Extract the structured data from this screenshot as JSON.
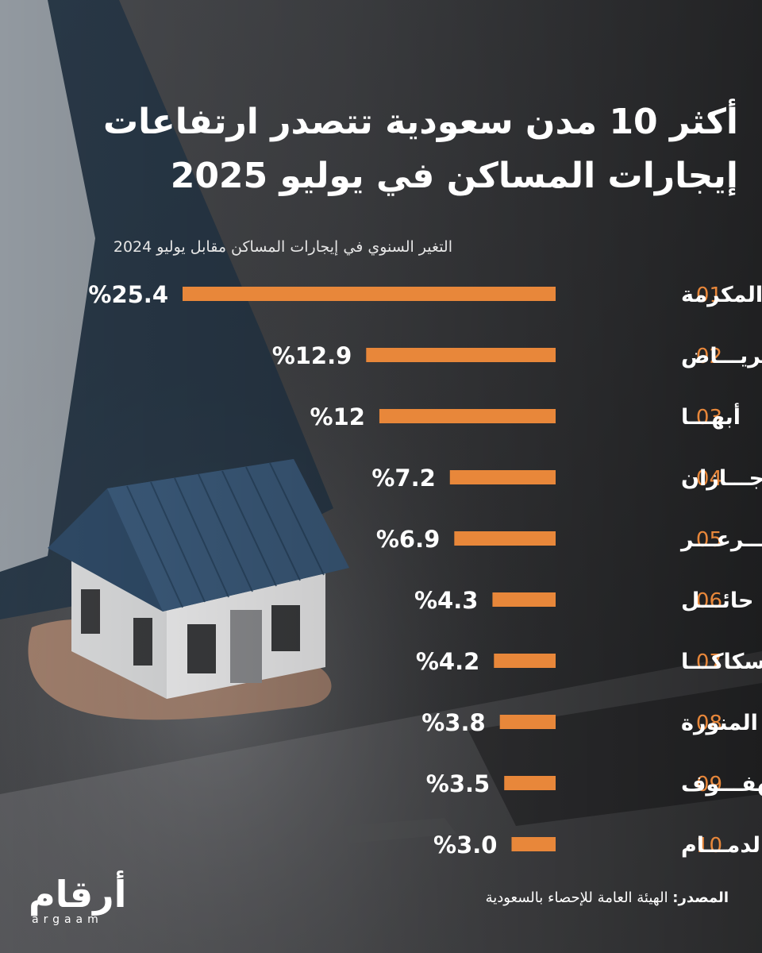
{
  "header": {
    "title": "أكثر 10 مدن سعودية تتصدر ارتفاعات إيجارات المساكن في يوليو 2025",
    "subtitle": "التغير السنوي في إيجارات المساكن مقابل يوليو 2024"
  },
  "chart_data": {
    "type": "bar",
    "orientation": "horizontal",
    "title": "أكثر 10 مدن سعودية تتصدر ارتفاعات إيجارات المساكن في يوليو 2025",
    "subtitle": "التغير السنوي في إيجارات المساكن مقابل يوليو 2024",
    "ranks": [
      "01",
      "02",
      "03",
      "04",
      "05",
      "06",
      "07",
      "08",
      "09",
      "10"
    ],
    "categories": [
      "مكة المكرمة",
      "الريـــاض",
      "أبهـــا",
      "جـــازان",
      "عـــرعـــر",
      "حائـــل",
      "سكاكـــا",
      "المدينة المنورة",
      "الهفـــوف",
      "الدمـــام"
    ],
    "values": [
      25.4,
      12.9,
      12,
      7.2,
      6.9,
      4.3,
      4.2,
      3.8,
      3.5,
      3.0
    ],
    "value_labels": [
      "%25.4",
      "%12.9",
      "%12",
      "%7.2",
      "%6.9",
      "%4.3",
      "%4.2",
      "%3.8",
      "%3.5",
      "%3.0"
    ],
    "unit": "%",
    "bar_color": "#e8873a",
    "grid": false,
    "legend": "none"
  },
  "footer": {
    "source_label": "المصدر:",
    "source_text": " الهيئة العامة للإحصاء بالسعودية",
    "brand_ar": "أرقام",
    "brand_en": "argaam"
  },
  "colors": {
    "accent": "#e8873a",
    "text": "#ffffff",
    "background": "#3a3b3d"
  }
}
